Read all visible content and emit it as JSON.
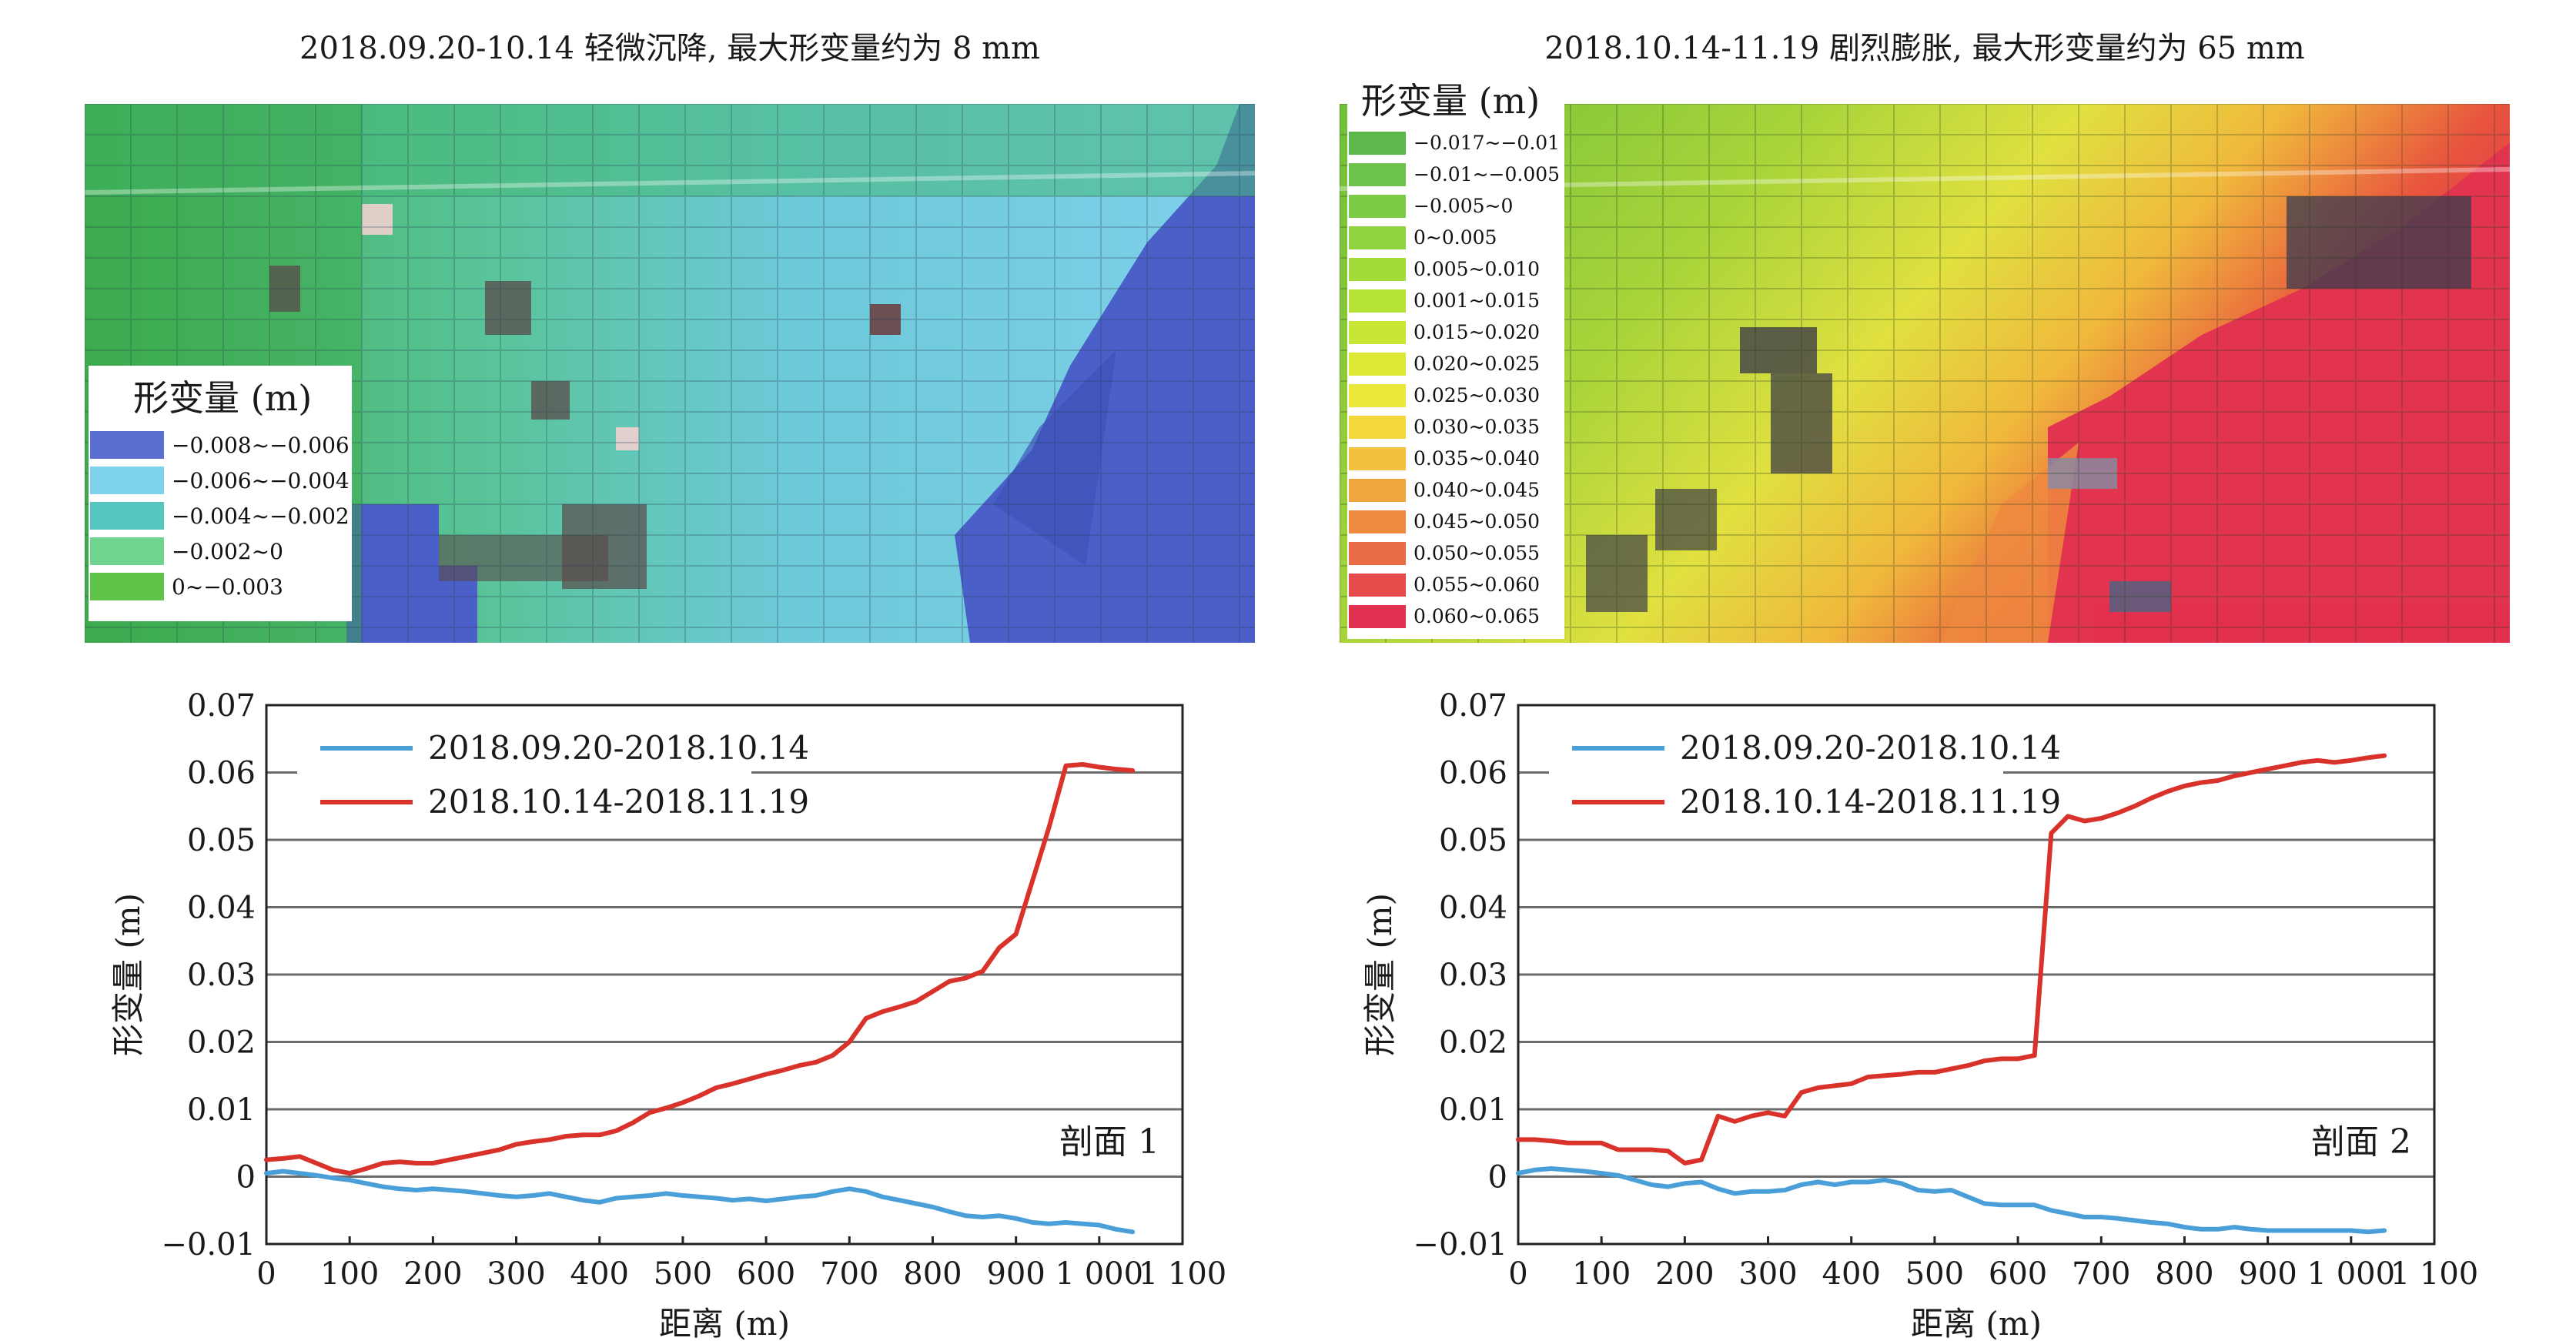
{
  "left": {
    "title": "2018.09.20-10.14 轻微沉降, 最大形变量约为 8 mm",
    "legend_title": "形变量 (m)",
    "legend": [
      {
        "label": "−0.008~−0.006",
        "color": "#5b6fd0"
      },
      {
        "label": "−0.006~−0.004",
        "color": "#7fd2ee"
      },
      {
        "label": "−0.004~−0.002",
        "color": "#56c6c0"
      },
      {
        "label": "−0.002~0",
        "color": "#6fd48e"
      },
      {
        "label": "0~−0.003",
        "color": "#5ec44a"
      }
    ]
  },
  "right": {
    "title": "2018.10.14-11.19 剧烈膨胀, 最大形变量约为 65 mm",
    "legend_title": "形变量 (m)",
    "legend": [
      {
        "label": "−0.017~−0.01",
        "color": "#5cb84a"
      },
      {
        "label": "−0.01~−0.005",
        "color": "#6cc24a"
      },
      {
        "label": "−0.005~0",
        "color": "#7dcc45"
      },
      {
        "label": "0~0.005",
        "color": "#8fd440"
      },
      {
        "label": "0.005~0.010",
        "color": "#a2dc3a"
      },
      {
        "label": "0.001~0.015",
        "color": "#b6e236"
      },
      {
        "label": "0.015~0.020",
        "color": "#c8e634"
      },
      {
        "label": "0.020~0.025",
        "color": "#dbe836"
      },
      {
        "label": "0.025~0.030",
        "color": "#ebe63a"
      },
      {
        "label": "0.030~0.035",
        "color": "#f2d83a"
      },
      {
        "label": "0.035~0.040",
        "color": "#f2c03c"
      },
      {
        "label": "0.040~0.045",
        "color": "#f0a63e"
      },
      {
        "label": "0.045~0.050",
        "color": "#ee8a40"
      },
      {
        "label": "0.050~0.055",
        "color": "#ea6c44"
      },
      {
        "label": "0.055~0.060",
        "color": "#e64c4c"
      },
      {
        "label": "0.060~0.065",
        "color": "#e23050"
      }
    ]
  },
  "chart_data": [
    {
      "type": "line",
      "xlabel": "距离 (m)",
      "ylabel": "形变量 (m)",
      "xlim": [
        0,
        1100
      ],
      "ylim": [
        -0.01,
        0.07
      ],
      "xticks": [
        0,
        100,
        200,
        300,
        400,
        500,
        600,
        700,
        800,
        900,
        1000,
        1100
      ],
      "xtick_labels": [
        "0",
        "100",
        "200",
        "300",
        "400",
        "500",
        "600",
        "700",
        "800",
        "900",
        "1 000",
        "1 100"
      ],
      "yticks": [
        -0.01,
        0,
        0.01,
        0.02,
        0.03,
        0.04,
        0.05,
        0.06,
        0.07
      ],
      "ytick_labels": [
        "−0.01",
        "0",
        "0.01",
        "0.02",
        "0.03",
        "0.04",
        "0.05",
        "0.06",
        "0.07"
      ],
      "grid": "horizontal",
      "legend_position": "top-left",
      "annotation": "剖面 1",
      "series": [
        {
          "name": "2018.09.20-2018.10.14",
          "color": "#4a9fd8",
          "x": [
            0,
            20,
            40,
            60,
            80,
            100,
            120,
            140,
            160,
            180,
            200,
            220,
            240,
            260,
            280,
            300,
            320,
            340,
            360,
            380,
            400,
            420,
            440,
            460,
            480,
            500,
            520,
            540,
            560,
            580,
            600,
            620,
            640,
            660,
            680,
            700,
            720,
            740,
            760,
            780,
            800,
            820,
            840,
            860,
            880,
            900,
            920,
            940,
            960,
            980,
            1000,
            1020,
            1040
          ],
          "y": [
            0.0005,
            0.0008,
            0.0005,
            0.0002,
            -0.0002,
            -0.0005,
            -0.001,
            -0.0015,
            -0.0018,
            -0.002,
            -0.0018,
            -0.002,
            -0.0022,
            -0.0025,
            -0.0028,
            -0.003,
            -0.0028,
            -0.0025,
            -0.003,
            -0.0035,
            -0.0038,
            -0.0032,
            -0.003,
            -0.0028,
            -0.0025,
            -0.0028,
            -0.003,
            -0.0032,
            -0.0035,
            -0.0033,
            -0.0036,
            -0.0033,
            -0.003,
            -0.0028,
            -0.0022,
            -0.0018,
            -0.0022,
            -0.003,
            -0.0035,
            -0.004,
            -0.0045,
            -0.0052,
            -0.0058,
            -0.006,
            -0.0058,
            -0.0062,
            -0.0068,
            -0.007,
            -0.0068,
            -0.007,
            -0.0072,
            -0.0078,
            -0.0082
          ]
        },
        {
          "name": "2018.10.14-2018.11.19",
          "color": "#d8322a",
          "x": [
            0,
            20,
            40,
            60,
            80,
            100,
            120,
            140,
            160,
            180,
            200,
            220,
            240,
            260,
            280,
            300,
            320,
            340,
            360,
            380,
            400,
            420,
            440,
            460,
            480,
            500,
            520,
            540,
            560,
            580,
            600,
            620,
            640,
            660,
            680,
            700,
            720,
            740,
            760,
            780,
            800,
            820,
            840,
            860,
            880,
            900,
            920,
            940,
            960,
            980,
            1000,
            1020,
            1040
          ],
          "y": [
            0.0025,
            0.0027,
            0.003,
            0.002,
            0.001,
            0.0005,
            0.0012,
            0.002,
            0.0022,
            0.002,
            0.002,
            0.0025,
            0.003,
            0.0035,
            0.004,
            0.0048,
            0.0052,
            0.0055,
            0.006,
            0.0062,
            0.0062,
            0.0068,
            0.008,
            0.0095,
            0.0102,
            0.011,
            0.012,
            0.0132,
            0.0138,
            0.0145,
            0.0152,
            0.0158,
            0.0165,
            0.017,
            0.018,
            0.02,
            0.0235,
            0.0245,
            0.0252,
            0.026,
            0.0275,
            0.029,
            0.0295,
            0.0305,
            0.034,
            0.036,
            0.044,
            0.052,
            0.061,
            0.0612,
            0.0608,
            0.0605,
            0.0603
          ]
        }
      ]
    },
    {
      "type": "line",
      "xlabel": "距离 (m)",
      "ylabel": "形变量 (m)",
      "xlim": [
        0,
        1100
      ],
      "ylim": [
        -0.01,
        0.07
      ],
      "xticks": [
        0,
        100,
        200,
        300,
        400,
        500,
        600,
        700,
        800,
        900,
        1000,
        1100
      ],
      "xtick_labels": [
        "0",
        "100",
        "200",
        "300",
        "400",
        "500",
        "600",
        "700",
        "800",
        "900",
        "1 000",
        "1 100"
      ],
      "yticks": [
        -0.01,
        0,
        0.01,
        0.02,
        0.03,
        0.04,
        0.05,
        0.06,
        0.07
      ],
      "ytick_labels": [
        "−0.01",
        "0",
        "0.01",
        "0.02",
        "0.03",
        "0.04",
        "0.05",
        "0.06",
        "0.07"
      ],
      "grid": "horizontal",
      "legend_position": "top-left",
      "annotation": "剖面 2",
      "series": [
        {
          "name": "2018.09.20-2018.10.14",
          "color": "#4a9fd8",
          "x": [
            0,
            20,
            40,
            60,
            80,
            100,
            120,
            140,
            160,
            180,
            200,
            220,
            240,
            260,
            280,
            300,
            320,
            340,
            360,
            380,
            400,
            420,
            440,
            460,
            480,
            500,
            520,
            540,
            560,
            580,
            600,
            620,
            640,
            660,
            680,
            700,
            720,
            740,
            760,
            780,
            800,
            820,
            840,
            860,
            880,
            900,
            920,
            940,
            960,
            980,
            1000,
            1020,
            1040
          ],
          "y": [
            0.0005,
            0.001,
            0.0012,
            0.001,
            0.0008,
            0.0005,
            0.0002,
            -0.0005,
            -0.0012,
            -0.0015,
            -0.001,
            -0.0008,
            -0.0018,
            -0.0025,
            -0.0022,
            -0.0022,
            -0.002,
            -0.0012,
            -0.0008,
            -0.0012,
            -0.0008,
            -0.0008,
            -0.0005,
            -0.001,
            -0.002,
            -0.0022,
            -0.002,
            -0.003,
            -0.004,
            -0.0042,
            -0.0042,
            -0.0042,
            -0.005,
            -0.0055,
            -0.006,
            -0.006,
            -0.0062,
            -0.0065,
            -0.0068,
            -0.007,
            -0.0075,
            -0.0078,
            -0.0078,
            -0.0075,
            -0.0078,
            -0.008,
            -0.008,
            -0.008,
            -0.008,
            -0.008,
            -0.008,
            -0.0082,
            -0.008
          ]
        },
        {
          "name": "2018.10.14-2018.11.19",
          "color": "#d8322a",
          "x": [
            0,
            20,
            40,
            60,
            80,
            100,
            120,
            140,
            160,
            180,
            200,
            220,
            240,
            260,
            280,
            300,
            320,
            340,
            360,
            380,
            400,
            420,
            440,
            460,
            480,
            500,
            520,
            540,
            560,
            580,
            600,
            620,
            640,
            660,
            680,
            700,
            720,
            740,
            760,
            780,
            800,
            820,
            840,
            860,
            880,
            900,
            920,
            940,
            960,
            980,
            1000,
            1020,
            1040
          ],
          "y": [
            0.0055,
            0.0055,
            0.0053,
            0.005,
            0.005,
            0.005,
            0.004,
            0.004,
            0.004,
            0.0038,
            0.002,
            0.0025,
            0.009,
            0.0082,
            0.009,
            0.0095,
            0.009,
            0.0125,
            0.0132,
            0.0135,
            0.0138,
            0.0148,
            0.015,
            0.0152,
            0.0155,
            0.0155,
            0.016,
            0.0165,
            0.0172,
            0.0175,
            0.0175,
            0.018,
            0.051,
            0.0535,
            0.0528,
            0.0532,
            0.054,
            0.055,
            0.0562,
            0.0572,
            0.058,
            0.0585,
            0.0588,
            0.0595,
            0.06,
            0.0605,
            0.061,
            0.0615,
            0.0618,
            0.0615,
            0.0618,
            0.0622,
            0.0625
          ]
        }
      ]
    }
  ]
}
